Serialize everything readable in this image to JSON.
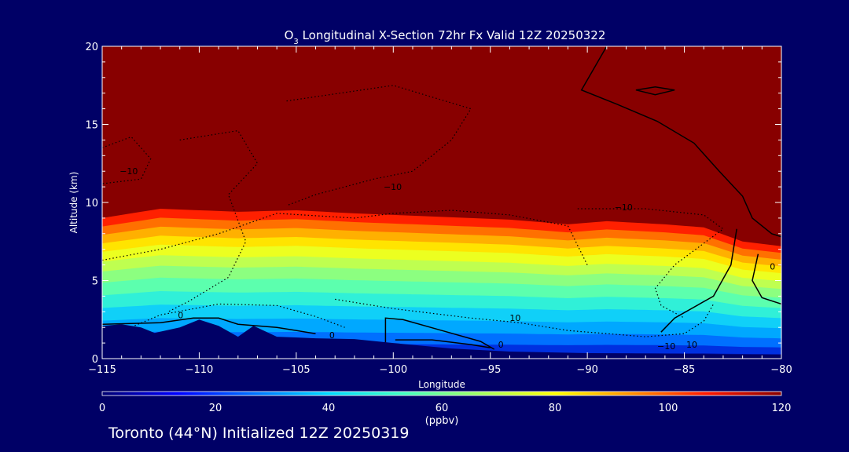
{
  "chart_data": {
    "type": "heatmap",
    "title_prefix": "O",
    "title_subscript": "3",
    "title_rest": " Longitudinal X-Section 72hr  Fx Valid 12Z 20250322",
    "xlabel": "Longitude",
    "ylabel": "Altitude (km)",
    "xlim": [
      -115,
      -80
    ],
    "ylim": [
      0,
      20
    ],
    "x_ticks": [
      -115,
      -110,
      -105,
      -100,
      -95,
      -90,
      -85,
      -80
    ],
    "x_tick_labels": [
      "−115",
      "−110",
      "−105",
      "−100",
      "−95",
      "−90",
      "−85",
      "−80"
    ],
    "y_ticks": [
      0,
      5,
      10,
      15,
      20
    ],
    "y_tick_labels": [
      "0",
      "5",
      "10",
      "15",
      "20"
    ],
    "colorbar": {
      "label": "(ppbv)",
      "range": [
        0,
        120
      ],
      "ticks": [
        0,
        20,
        40,
        60,
        80,
        100,
        120
      ],
      "tick_labels": [
        "0",
        "20",
        "40",
        "60",
        "80",
        "100",
        "120"
      ],
      "colors": [
        "#000070",
        "#0000ff",
        "#0070ff",
        "#00d8ff",
        "#40ffc0",
        "#a0ff60",
        "#ffff00",
        "#ff9000",
        "#ff1800",
        "#880000"
      ]
    },
    "tropopause_km": [
      [
        -115,
        9.0
      ],
      [
        -112,
        9.6
      ],
      [
        -108,
        9.4
      ],
      [
        -105,
        9.5
      ],
      [
        -102,
        9.3
      ],
      [
        -98,
        9.1
      ],
      [
        -94,
        8.9
      ],
      [
        -91,
        8.6
      ],
      [
        -89,
        8.8
      ],
      [
        -86,
        8.6
      ],
      [
        -84,
        8.4
      ],
      [
        -82,
        7.5
      ],
      [
        -80,
        7.2
      ]
    ],
    "contour_labels": [
      {
        "text": "−10",
        "x": -114.1,
        "y": 11.8
      },
      {
        "text": "−10",
        "x": -100.5,
        "y": 10.8
      },
      {
        "text": "−10",
        "x": -88.6,
        "y": 9.5
      },
      {
        "text": "0",
        "x": -111.1,
        "y": 2.6
      },
      {
        "text": "0",
        "x": -103.3,
        "y": 1.3
      },
      {
        "text": "10",
        "x": -94.0,
        "y": 2.4
      },
      {
        "text": "0",
        "x": -94.6,
        "y": 0.7
      },
      {
        "text": "−10",
        "x": -86.4,
        "y": 0.6
      },
      {
        "text": "10",
        "x": -84.9,
        "y": 0.7
      },
      {
        "text": "0",
        "x": -80.6,
        "y": 5.7
      }
    ],
    "terrain_km": [
      [
        -115,
        2.1
      ],
      [
        -114,
        2.2
      ],
      [
        -113,
        2.0
      ],
      [
        -112.3,
        1.65
      ],
      [
        -111,
        2.0
      ],
      [
        -110,
        2.5
      ],
      [
        -109,
        2.1
      ],
      [
        -108,
        1.4
      ],
      [
        -107.2,
        2.1
      ],
      [
        -106,
        1.4
      ],
      [
        -104,
        1.3
      ],
      [
        -102,
        1.25
      ],
      [
        -100,
        1.0
      ],
      [
        -97,
        0.65
      ],
      [
        -94,
        0.45
      ],
      [
        -90,
        0.35
      ],
      [
        -85,
        0.3
      ],
      [
        -80,
        0.25
      ]
    ],
    "footer": "Toronto (44°N) Initialized 12Z 20250319"
  }
}
